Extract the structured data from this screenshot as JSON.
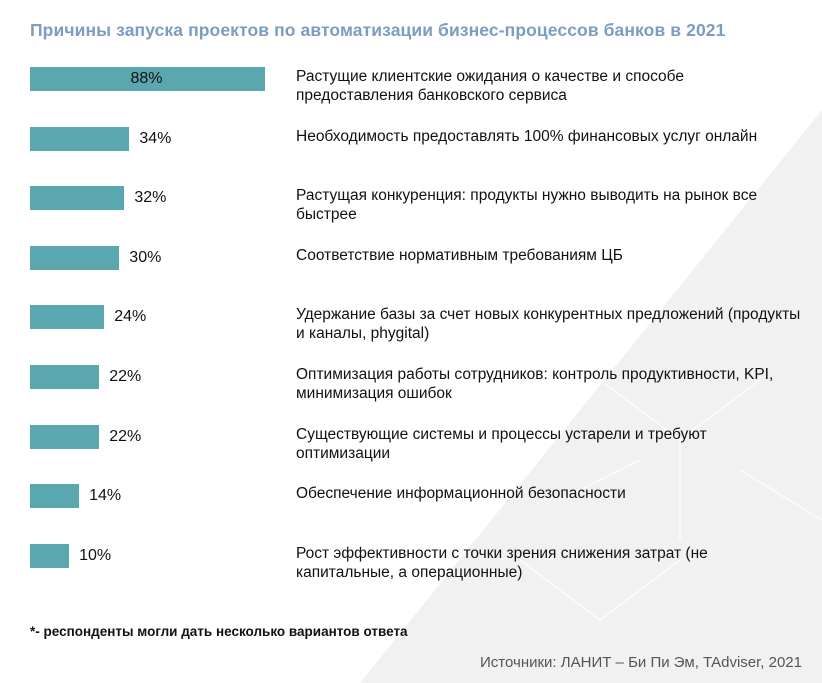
{
  "chart_data": {
    "type": "bar",
    "orientation": "horizontal",
    "title": "Причины запуска проектов по автоматизации бизнес-процессов банков в 2021",
    "categories": [
      "Растущие клиентские ожидания о качестве и способе предоставления банковского сервиса",
      "Необходимость предоставлять 100% финансовых услуг онлайн",
      "Растущая конкуренция: продукты нужно выводить на рынок все быстрее",
      "Соответствие нормативным требованиям ЦБ",
      "Удержание базы за счет новых конкурентных предложений (продукты и каналы, phygital)",
      "Оптимизация работы сотрудников: контроль продуктивности, KPI, минимизация ошибок",
      "Существующие системы и процессы устарели и требуют оптимизации",
      "Обеспечение информационной безопасности",
      "Рост эффективности с точки зрения снижения затрат (не капитальные, а операционные)"
    ],
    "values": [
      88,
      34,
      32,
      30,
      24,
      22,
      22,
      14,
      10
    ],
    "value_labels": [
      "88%",
      "34%",
      "32%",
      "30%",
      "24%",
      "22%",
      "22%",
      "14%",
      "10%"
    ],
    "unit": "%",
    "bar_color": "#5aa7b0",
    "title_color": "#7d9cc2",
    "grid": false
  },
  "footnote": "*- респонденты могли дать несколько вариантов ответа",
  "source": "Источники: ЛАНИТ – Би Пи Эм, TAdviser, 2021"
}
